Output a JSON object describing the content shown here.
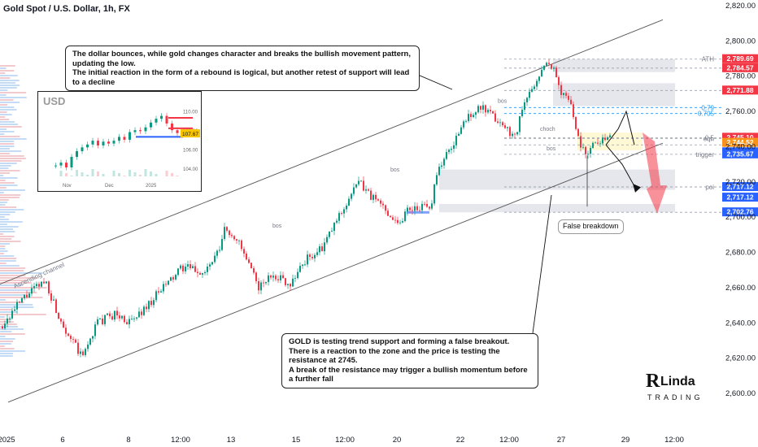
{
  "header": {
    "title": "Gold Spot / U.S. Dollar, 1h, FX"
  },
  "annotations": {
    "top_text": "The dollar bounces, while gold changes character and breaks the bullish movement pattern, updating the low.\nThe initial reaction in the form of a rebound is logical, but another retest of support will lead to a decline",
    "bottom_text": "GOLD is testing trend support and forming a false breakout.\nThere is a reaction to the zone and the price is testing the resistance at 2745.\nA break of the resistance may trigger a bullish momentum before a further fall",
    "false_breakdown": "False breakdown",
    "channel_label": "Ascending channel",
    "bos_label": "bos",
    "choch_label": "choch"
  },
  "brand": {
    "logo_text": "RLinda TRADING"
  },
  "colors": {
    "up": "#089981",
    "down": "#f23645",
    "channel": "#555555",
    "zone": "#d1d4dc",
    "red_tag": "#f23645",
    "orange_tag": "#f7931a",
    "blue_tag": "#2962ff",
    "fib": "#2196f3"
  },
  "chart_data": [
    {
      "type": "candlestick",
      "title": "Gold Spot / U.S. Dollar, 1h, FX",
      "ylim": [
        2590,
        2825
      ],
      "y_ticks": [
        "2,820.00",
        "2,800.00",
        "2,780.00",
        "2,760.00",
        "2,740.00",
        "2,720.00",
        "2,700.00",
        "2,680.00",
        "2,660.00",
        "2,640.00",
        "2,620.00",
        "2,600.00"
      ],
      "x_ticks": [
        "2025",
        "6",
        "8",
        "12:00",
        "13",
        "15",
        "12:00",
        "20",
        "22",
        "12:00",
        "27",
        "29",
        "12:00"
      ],
      "price_path": [
        [
          0,
          2638
        ],
        [
          30,
          2655
        ],
        [
          55,
          2664
        ],
        [
          70,
          2645
        ],
        [
          85,
          2632
        ],
        [
          100,
          2620
        ],
        [
          118,
          2640
        ],
        [
          140,
          2645
        ],
        [
          160,
          2640
        ],
        [
          180,
          2650
        ],
        [
          200,
          2660
        ],
        [
          225,
          2672
        ],
        [
          250,
          2668
        ],
        [
          268,
          2680
        ],
        [
          275,
          2693
        ],
        [
          290,
          2688
        ],
        [
          305,
          2672
        ],
        [
          318,
          2660
        ],
        [
          335,
          2668
        ],
        [
          355,
          2662
        ],
        [
          375,
          2676
        ],
        [
          395,
          2682
        ],
        [
          415,
          2700
        ],
        [
          430,
          2712
        ],
        [
          440,
          2720
        ],
        [
          455,
          2712
        ],
        [
          470,
          2706
        ],
        [
          490,
          2696
        ],
        [
          500,
          2705
        ],
        [
          515,
          2706
        ],
        [
          528,
          2704
        ],
        [
          535,
          2725
        ],
        [
          548,
          2735
        ],
        [
          560,
          2745
        ],
        [
          575,
          2758
        ],
        [
          590,
          2762
        ],
        [
          605,
          2757
        ],
        [
          620,
          2751
        ],
        [
          632,
          2746
        ],
        [
          642,
          2762
        ],
        [
          655,
          2775
        ],
        [
          668,
          2785
        ],
        [
          676,
          2788
        ],
        [
          688,
          2772
        ],
        [
          700,
          2766
        ],
        [
          710,
          2745
        ],
        [
          718,
          2736
        ],
        [
          725,
          2740
        ],
        [
          735,
          2744
        ],
        [
          750,
          2745
        ]
      ],
      "levels": [
        {
          "label": "ATH",
          "value": 2789.69,
          "tag": "2,789.69",
          "tag_color": "red"
        },
        {
          "label": "",
          "value": 2784.57,
          "tag": "2,784.57",
          "tag_color": "red"
        },
        {
          "label": "",
          "value": 2771.88,
          "tag": "2,771.88",
          "tag_color": "red"
        },
        {
          "label": "0.79",
          "value": 2762.2,
          "tag": "",
          "tag_color": "fib"
        },
        {
          "label": "0.705",
          "value": 2758.8,
          "tag": "",
          "tag_color": "fib"
        },
        {
          "label": "0.5",
          "value": 2745.1,
          "tag": "2,745.10",
          "tag_color": "red"
        },
        {
          "label": "eqh",
          "value": 2744.52,
          "tag": "2,744.52",
          "tag_color": "orange"
        },
        {
          "label": "",
          "value": 2741.0,
          "tag": "2,741.00",
          "tag_color": "blue"
        },
        {
          "label": "trigger",
          "value": 2735.67,
          "tag": "2,735.67",
          "tag_color": "blue"
        },
        {
          "label": "poi",
          "value": 2717.12,
          "tag": "2,717.12",
          "tag_color": "blue"
        },
        {
          "label": "",
          "value": 2717.12,
          "tag": "2,717.12",
          "tag_color": "blue"
        },
        {
          "label": "",
          "value": 2702.76,
          "tag": "2,702.76",
          "tag_color": "blue"
        }
      ],
      "channel": {
        "upper": [
          [
            0,
            2662
          ],
          [
            815,
            2812
          ]
        ],
        "lower": [
          [
            10,
            2595
          ],
          [
            815,
            2742
          ]
        ]
      }
    },
    {
      "type": "candlestick",
      "title": "USD",
      "y_ticks": [
        "110.00",
        "108.00",
        "106.00",
        "104.00"
      ],
      "x_ticks": [
        "Nov",
        "Dec",
        "2025"
      ],
      "last_value_tag": "107.67",
      "values": [
        104.3,
        104.6,
        104.1,
        105.2,
        105.8,
        106.2,
        106.5,
        106.9,
        106.4,
        106.8,
        106.6,
        106.9,
        107.3,
        107.0,
        107.8,
        108.0,
        107.9,
        108.3,
        108.8,
        109.2,
        109.5,
        108.7,
        108.0,
        107.7
      ]
    }
  ]
}
